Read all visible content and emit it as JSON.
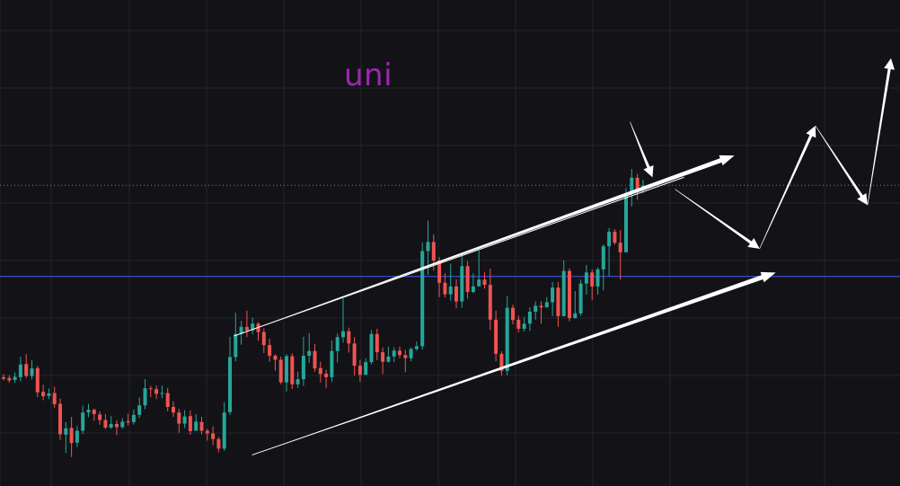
{
  "title": "uni",
  "chart_data": {
    "type": "candlestick",
    "title": "uni",
    "xlabel": "",
    "ylabel": "",
    "ylim": [
      0,
      100
    ],
    "grid": true,
    "colors": {
      "up": "#26a69a",
      "down": "#ef5350",
      "background": "#131317",
      "grid": "#22252d",
      "annotation": "#ffffff",
      "horizontal_line": "#3d5afe",
      "dotted_line": "#26a69a",
      "title": "#9c27b0"
    },
    "candles": [
      [
        24.6,
        24.2,
        25.4,
        23.8
      ],
      [
        24.4,
        23.8,
        25.1,
        23.2
      ],
      [
        23.9,
        24.7,
        25.8,
        23.2
      ],
      [
        24.6,
        27.8,
        29.8,
        23.6
      ],
      [
        27.9,
        24.9,
        30.4,
        24.4
      ],
      [
        24.9,
        26.8,
        28.9,
        24.0
      ],
      [
        26.9,
        20.8,
        27.4,
        19.6
      ],
      [
        20.9,
        19.8,
        22.7,
        18.8
      ],
      [
        19.9,
        20.5,
        21.8,
        19.1
      ],
      [
        20.6,
        17.8,
        22.2,
        16.9
      ],
      [
        17.9,
        10.2,
        19.2,
        8.8
      ],
      [
        10.1,
        11.7,
        13.3,
        5.5
      ],
      [
        11.8,
        8.0,
        14.6,
        4.5
      ],
      [
        8.1,
        11.1,
        12.3,
        7.0
      ],
      [
        11.1,
        15.7,
        17.4,
        10.3
      ],
      [
        15.7,
        16.4,
        17.9,
        14.5
      ],
      [
        16.4,
        15.3,
        16.7,
        13.6
      ],
      [
        15.2,
        13.8,
        16.0,
        12.6
      ],
      [
        13.8,
        11.9,
        15.3,
        11.5
      ],
      [
        11.9,
        12.8,
        14.8,
        11.6
      ],
      [
        12.8,
        12.0,
        13.7,
        10.0
      ],
      [
        12.0,
        13.4,
        14.3,
        11.7
      ],
      [
        13.5,
        13.2,
        15.4,
        12.4
      ],
      [
        13.3,
        15.1,
        16.4,
        12.7
      ],
      [
        15.1,
        17.5,
        19.5,
        14.3
      ],
      [
        17.5,
        21.8,
        24.1,
        16.5
      ],
      [
        21.8,
        21.6,
        22.4,
        19.6
      ],
      [
        21.6,
        20.4,
        22.5,
        19.1
      ],
      [
        20.4,
        20.6,
        22.5,
        19.3
      ],
      [
        20.6,
        17.1,
        21.9,
        16.0
      ],
      [
        17.1,
        15.7,
        18.5,
        14.6
      ],
      [
        15.7,
        12.9,
        16.6,
        10.6
      ],
      [
        12.9,
        14.7,
        16.3,
        11.8
      ],
      [
        14.8,
        11.0,
        16.2,
        10.1
      ],
      [
        11.1,
        13.4,
        15.3,
        11.3
      ],
      [
        13.3,
        11.1,
        14.6,
        10.2
      ],
      [
        11.1,
        10.4,
        11.6,
        8.6
      ],
      [
        10.4,
        9.0,
        12.2,
        7.5
      ],
      [
        9.0,
        6.6,
        9.5,
        5.7
      ],
      [
        6.6,
        15.7,
        18.3,
        6.0
      ],
      [
        15.8,
        29.7,
        34.8,
        15.1
      ],
      [
        29.7,
        35.5,
        40.8,
        28.6
      ],
      [
        35.5,
        37.3,
        38.8,
        32.8
      ],
      [
        37.3,
        36.4,
        41.4,
        34.7
      ],
      [
        36.4,
        38.1,
        39.6,
        35.5
      ],
      [
        38.1,
        36.0,
        38.5,
        33.8
      ],
      [
        36.0,
        32.7,
        36.9,
        30.7
      ],
      [
        32.7,
        30.0,
        34.3,
        28.5
      ],
      [
        30.0,
        29.0,
        30.4,
        26.2
      ],
      [
        29.0,
        23.3,
        29.8,
        22.8
      ],
      [
        23.3,
        29.9,
        30.4,
        21.0
      ],
      [
        29.9,
        22.8,
        30.6,
        21.6
      ],
      [
        22.8,
        24.1,
        26.0,
        21.9
      ],
      [
        24.1,
        30.0,
        34.8,
        22.4
      ],
      [
        30.0,
        31.2,
        35.7,
        28.2
      ],
      [
        31.2,
        26.8,
        33.0,
        26.0
      ],
      [
        26.9,
        25.4,
        28.5,
        23.3
      ],
      [
        25.5,
        24.6,
        26.5,
        21.9
      ],
      [
        24.6,
        31.2,
        33.9,
        23.4
      ],
      [
        31.2,
        34.7,
        35.6,
        28.3
      ],
      [
        34.7,
        36.2,
        44.5,
        33.3
      ],
      [
        36.2,
        33.1,
        37.1,
        30.8
      ],
      [
        33.1,
        27.5,
        34.7,
        25.0
      ],
      [
        27.5,
        25.2,
        29.0,
        23.4
      ],
      [
        25.2,
        28.4,
        29.4,
        25.3
      ],
      [
        28.4,
        35.5,
        36.5,
        27.9
      ],
      [
        35.5,
        30.9,
        36.8,
        28.9
      ],
      [
        30.9,
        28.5,
        32.1,
        25.4
      ],
      [
        28.5,
        29.8,
        32.3,
        28.3
      ],
      [
        29.8,
        31.3,
        32.1,
        28.4
      ],
      [
        31.3,
        30.2,
        32.3,
        29.4
      ],
      [
        30.2,
        29.4,
        31.5,
        25.8
      ],
      [
        29.4,
        31.7,
        32.1,
        28.6
      ],
      [
        31.7,
        32.4,
        33.6,
        31.3
      ],
      [
        32.4,
        56.4,
        58.6,
        31.6
      ],
      [
        56.4,
        58.7,
        64.1,
        50.4
      ],
      [
        58.7,
        54.0,
        60.6,
        51.5
      ],
      [
        54.0,
        48.4,
        54.9,
        44.8
      ],
      [
        48.4,
        45.5,
        50.8,
        44.7
      ],
      [
        45.5,
        47.5,
        53.2,
        43.9
      ],
      [
        47.5,
        43.7,
        49.3,
        42.0
      ],
      [
        43.7,
        52.6,
        55.8,
        42.1
      ],
      [
        52.6,
        46.1,
        53.9,
        44.4
      ],
      [
        46.1,
        47.5,
        50.8,
        45.8
      ],
      [
        47.5,
        49.2,
        56.6,
        47.7
      ],
      [
        49.2,
        47.9,
        51.0,
        46.9
      ],
      [
        47.9,
        39.1,
        52.0,
        36.5
      ],
      [
        39.1,
        30.5,
        41.4,
        28.6
      ],
      [
        30.5,
        26.2,
        31.1,
        25.0
      ],
      [
        26.2,
        42.1,
        45.1,
        25.1
      ],
      [
        42.1,
        39.0,
        42.9,
        37.9
      ],
      [
        39.1,
        36.8,
        40.1,
        35.9
      ],
      [
        36.8,
        38.1,
        39.8,
        36.1
      ],
      [
        38.1,
        41.1,
        42.2,
        36.3
      ],
      [
        41.1,
        42.6,
        43.7,
        39.1
      ],
      [
        42.6,
        42.2,
        43.8,
        38.1
      ],
      [
        42.2,
        43.5,
        44.8,
        42.3
      ],
      [
        43.5,
        47.2,
        48.6,
        40.0
      ],
      [
        47.2,
        40.0,
        48.6,
        37.3
      ],
      [
        40.0,
        51.4,
        54.1,
        39.9
      ],
      [
        51.4,
        39.5,
        52.0,
        38.7
      ],
      [
        39.5,
        40.7,
        46.3,
        39.4
      ],
      [
        40.7,
        48.2,
        49.2,
        40.1
      ],
      [
        48.2,
        51.0,
        52.9,
        45.4
      ],
      [
        51.0,
        47.5,
        51.8,
        44.1
      ],
      [
        47.5,
        51.8,
        52.3,
        45.4
      ],
      [
        51.8,
        57.6,
        58.1,
        46.5
      ],
      [
        57.6,
        61.3,
        62.2,
        50.1
      ],
      [
        61.3,
        58.5,
        61.9,
        58.0
      ],
      [
        58.5,
        56.1,
        61.7,
        49.2
      ],
      [
        56.1,
        70.9,
        72.3,
        57.2
      ],
      [
        70.9,
        74.9,
        77.1,
        67.6
      ],
      [
        74.9,
        72.0,
        75.9,
        69.3
      ],
      [
        72.0,
        72.9,
        74.4,
        71.0
      ]
    ],
    "lines": [
      {
        "type": "horizontal",
        "y": 50.0
      },
      {
        "type": "horizontal_dotted",
        "y": 73.0
      },
      {
        "type": "channel_upper",
        "from": [
          0.26,
          35.0
        ],
        "to": [
          0.76,
          75.0
        ]
      },
      {
        "type": "channel_lower",
        "from": [
          0.28,
          5.0
        ],
        "to": [
          0.6,
          30.0
        ]
      }
    ],
    "arrows": [
      {
        "from": [
          0.26,
          35.0
        ],
        "to": [
          0.816,
          80.5
        ],
        "weight": "channel"
      },
      {
        "from": [
          0.28,
          5.0
        ],
        "to": [
          0.862,
          51.0
        ],
        "weight": "channel"
      },
      {
        "from": [
          0.7,
          89.0
        ],
        "to": [
          0.725,
          75.0
        ],
        "weight": "pointer"
      },
      {
        "from": [
          0.75,
          72.0
        ],
        "to": [
          0.844,
          57.0
        ],
        "weight": "path"
      },
      {
        "from": [
          0.844,
          57.0
        ],
        "to": [
          0.906,
          88.0
        ],
        "weight": "path"
      },
      {
        "from": [
          0.906,
          88.0
        ],
        "to": [
          0.964,
          68.0
        ],
        "weight": "path"
      },
      {
        "from": [
          0.964,
          68.0
        ],
        "to": [
          0.99,
          105.0
        ],
        "weight": "path"
      }
    ]
  }
}
